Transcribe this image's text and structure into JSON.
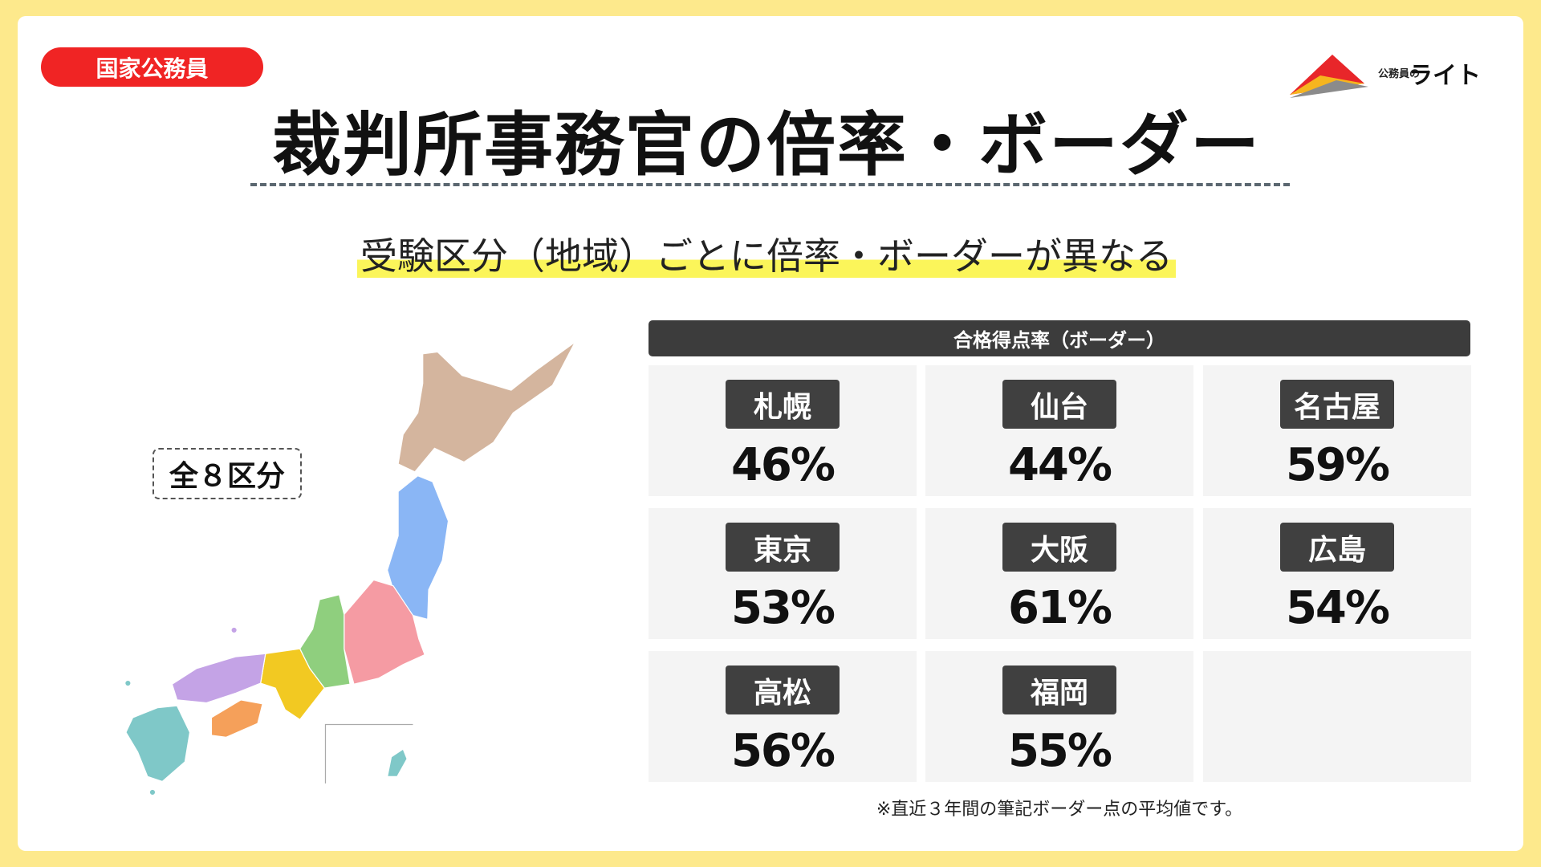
{
  "header": {
    "badge": "国家公務員",
    "title": "裁判所事務官の倍率・ボーダー",
    "logo_small": "公務員の",
    "logo_main": "ライト"
  },
  "subtitle": "受験区分（地域）ごとに倍率・ボーダーが異なる",
  "map": {
    "label": "全８区分"
  },
  "table": {
    "title": "合格得点率（ボーダー）",
    "cells": [
      {
        "region": "札幌",
        "rate": "46%"
      },
      {
        "region": "仙台",
        "rate": "44%"
      },
      {
        "region": "名古屋",
        "rate": "59%"
      },
      {
        "region": "東京",
        "rate": "53%"
      },
      {
        "region": "大阪",
        "rate": "61%"
      },
      {
        "region": "広島",
        "rate": "54%"
      },
      {
        "region": "高松",
        "rate": "56%"
      },
      {
        "region": "福岡",
        "rate": "55%"
      }
    ]
  },
  "footnote": "※直近３年間の筆記ボーダー点の平均値です。"
}
